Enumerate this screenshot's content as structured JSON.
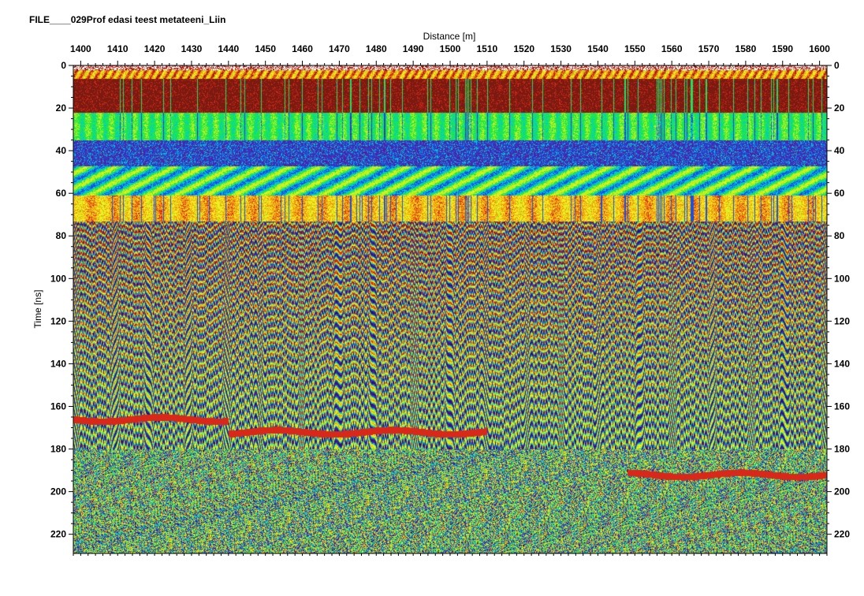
{
  "file_title": "FILE____029Prof edasi teest metateeni_Liin",
  "chart_data": {
    "type": "heatmap",
    "title": "FILE____029Prof edasi teest metateeni_Liin",
    "xlabel": "Distance [m]",
    "ylabel": "Time [ns]",
    "xlim": [
      1398,
      1602
    ],
    "ylim": [
      0,
      229
    ],
    "x_axis_position": "top",
    "y_axis_position": "left and right",
    "x_ticks": [
      1400,
      1410,
      1420,
      1430,
      1440,
      1450,
      1460,
      1470,
      1480,
      1490,
      1500,
      1510,
      1520,
      1530,
      1540,
      1550,
      1560,
      1570,
      1580,
      1590,
      1600
    ],
    "x_tick_labels": [
      "1400",
      "1410",
      "1420",
      "1430",
      "1440",
      "1450",
      "1460",
      "1470",
      "1480",
      "1490",
      "1500",
      "1510",
      "1520",
      "1530",
      "1540",
      "1550",
      "1560",
      "1570",
      "1580",
      "1590",
      "1600"
    ],
    "y_ticks": [
      0,
      20,
      40,
      60,
      80,
      100,
      120,
      140,
      160,
      180,
      200,
      220
    ],
    "y_tick_labels": [
      "0",
      "20",
      "40",
      "60",
      "80",
      "100",
      "120",
      "140",
      "160",
      "180",
      "200",
      "220"
    ],
    "grid": false,
    "colormap": [
      "#2a0f63",
      "#5a1a9a",
      "#1b4fe0",
      "#00c8d8",
      "#1ee84a",
      "#b8f020",
      "#f0f020",
      "#f09a10",
      "#d8281a",
      "#7a1a10"
    ],
    "bands": [
      {
        "t0": 0,
        "t1": 6,
        "kind": "surface"
      },
      {
        "t0": 6,
        "t1": 22,
        "kind": "dark-red"
      },
      {
        "t0": 22,
        "t1": 35,
        "kind": "green"
      },
      {
        "t0": 35,
        "t1": 47,
        "kind": "purple"
      },
      {
        "t0": 47,
        "t1": 61,
        "kind": "green-cyan"
      },
      {
        "t0": 61,
        "t1": 73,
        "kind": "orange-yellow"
      },
      {
        "t0": 73,
        "t1": 180,
        "kind": "layered"
      },
      {
        "t0": 180,
        "t1": 229,
        "kind": "noise"
      }
    ],
    "reflectors": [
      {
        "x0": 1398,
        "x1": 1440,
        "t": 166,
        "kind": "orange"
      },
      {
        "x0": 1440,
        "x1": 1510,
        "t": 172,
        "kind": "orange"
      },
      {
        "x0": 1548,
        "x1": 1602,
        "t": 192,
        "kind": "orange"
      }
    ]
  }
}
